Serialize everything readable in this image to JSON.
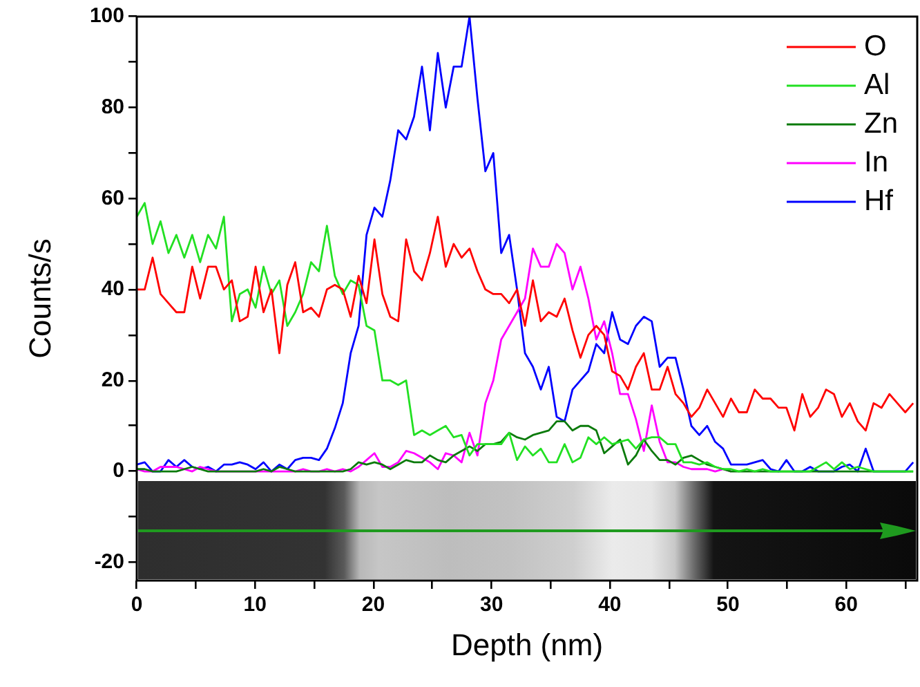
{
  "chart_data": {
    "type": "line",
    "xlabel": "Depth (nm)",
    "ylabel": "Counts/s",
    "legend": "top right",
    "xlim": [
      0,
      66
    ],
    "xticks": [
      0,
      {
        "value": 5,
        "label": null
      },
      10,
      {
        "value": 15,
        "label": null
      },
      20,
      {
        "value": 25,
        "label": null
      },
      30,
      {
        "value": 35,
        "label": null
      },
      40,
      {
        "value": 45,
        "label": null
      },
      50,
      {
        "value": 55,
        "label": null
      },
      60,
      {
        "value": 65,
        "label": null
      }
    ],
    "ylim": [
      -24,
      100
    ],
    "yticks": [
      -20,
      {
        "value": -10,
        "label": null
      },
      0,
      {
        "value": 10,
        "label": null
      },
      20,
      {
        "value": 30,
        "label": null
      },
      40,
      {
        "value": 50,
        "label": null
      },
      60,
      {
        "value": 70,
        "label": null
      },
      80,
      {
        "value": 90,
        "label": null
      },
      100
    ],
    "x": [
      0,
      0.67,
      1.34,
      2.01,
      2.68,
      3.35,
      4.02,
      4.69,
      5.36,
      6.03,
      6.7,
      7.37,
      8.04,
      8.71,
      9.38,
      10.05,
      10.72,
      11.39,
      12.06,
      12.73,
      13.4,
      14.07,
      14.74,
      15.41,
      16.08,
      16.75,
      17.42,
      18.09,
      18.76,
      19.43,
      20.1,
      20.77,
      21.44,
      22.11,
      22.78,
      23.45,
      24.12,
      24.79,
      25.46,
      26.13,
      26.8,
      27.47,
      28.14,
      28.81,
      29.48,
      30.15,
      30.82,
      31.49,
      32.16,
      32.83,
      33.5,
      34.17,
      34.84,
      35.51,
      36.18,
      36.85,
      37.52,
      38.19,
      38.86,
      39.53,
      40.2,
      40.87,
      41.54,
      42.21,
      42.88,
      43.55,
      44.22,
      44.89,
      45.56,
      46.23,
      46.9,
      47.57,
      48.24,
      48.91,
      49.58,
      50.25,
      50.92,
      51.59,
      52.26,
      52.93,
      53.6,
      54.27,
      54.94,
      55.61,
      56.28,
      56.95,
      57.62,
      58.29,
      58.96,
      59.63,
      60.3,
      60.97,
      61.64,
      62.31,
      62.98,
      63.65,
      64.32,
      64.99,
      65.66
    ],
    "series": [
      {
        "name": "O",
        "color": "#ff0000",
        "values": [
          40,
          40,
          47,
          39,
          37,
          35,
          35,
          45,
          38,
          45,
          45,
          40,
          42,
          33,
          34,
          45,
          35,
          40,
          26,
          41,
          46,
          35,
          36,
          34,
          40,
          41,
          40,
          34,
          43,
          37,
          51,
          39,
          34,
          33,
          51,
          44,
          42,
          48,
          56,
          45,
          50,
          47,
          49,
          44,
          40,
          39,
          39,
          37,
          40,
          32,
          42,
          33,
          35,
          34,
          38,
          31,
          25,
          30,
          32,
          30,
          22,
          21,
          18,
          23,
          26,
          18,
          18,
          23,
          17,
          15,
          12,
          14,
          18,
          15,
          12,
          16,
          13,
          13,
          18,
          16,
          16,
          14,
          14,
          9,
          17,
          12,
          14,
          18,
          17,
          12,
          15,
          11,
          9,
          15,
          14,
          17,
          15,
          13,
          15
        ]
      },
      {
        "name": "Al",
        "color": "#22e022",
        "values": [
          56,
          59,
          50,
          55,
          48,
          52,
          47,
          52,
          46,
          52,
          49,
          56,
          33,
          39,
          40,
          36,
          45,
          39,
          42,
          32,
          35,
          39,
          46,
          44,
          54,
          43,
          39,
          42,
          41,
          32,
          31,
          20,
          20,
          19,
          20,
          8,
          9,
          8,
          9,
          10,
          7.5,
          8,
          3.5,
          6,
          6,
          6,
          6,
          8.5,
          2.5,
          5.5,
          3.5,
          5,
          2,
          2,
          6,
          2,
          3,
          7.5,
          6,
          7.5,
          6,
          6.5,
          7,
          5,
          7,
          7.5,
          7.5,
          6,
          6,
          2,
          2,
          1.5,
          2,
          1,
          0.5,
          0.5,
          0,
          0.5,
          0,
          0.5,
          0,
          0,
          0,
          0,
          0,
          0,
          1,
          2,
          0.5,
          2,
          0.5,
          1,
          0.5,
          0,
          0,
          0,
          0,
          0,
          0
        ]
      },
      {
        "name": "Zn",
        "color": "#0b7a0b",
        "values": [
          0.5,
          0.5,
          0,
          0,
          0,
          0,
          0.5,
          1,
          0.5,
          0,
          0,
          0,
          0,
          0,
          0,
          0,
          0.5,
          0,
          1,
          0.5,
          0,
          0,
          0,
          0,
          0,
          0,
          0,
          0.5,
          2,
          1.5,
          2,
          1.5,
          0.5,
          1.5,
          2.5,
          2,
          2,
          3.5,
          2.5,
          2,
          3.5,
          4.5,
          5.5,
          4.5,
          6,
          6,
          6.5,
          8.5,
          7.5,
          7,
          8,
          8.5,
          9,
          11,
          11,
          9,
          10,
          10,
          9,
          4,
          5.5,
          7,
          1.5,
          3.5,
          7,
          4.5,
          2.5,
          2.5,
          1.5,
          3,
          3.5,
          2.5,
          1.5,
          1,
          0.5,
          0,
          0,
          0,
          0,
          0,
          0,
          0,
          0,
          0,
          0,
          0,
          0,
          0,
          0,
          0,
          0,
          0,
          0,
          0,
          0,
          0,
          0,
          0,
          0
        ]
      },
      {
        "name": "In",
        "color": "#ff00ff",
        "values": [
          0.5,
          0,
          0,
          1,
          1,
          1,
          0.5,
          0,
          1,
          0.5,
          0,
          0,
          0,
          0,
          0,
          0,
          0,
          0,
          0,
          0,
          0,
          0.5,
          0,
          0,
          0.5,
          0,
          0.5,
          0,
          1,
          2.5,
          4,
          1,
          1,
          2,
          4.5,
          4,
          3,
          2,
          0.5,
          4,
          3.5,
          2,
          8.5,
          3.5,
          15,
          20,
          29,
          32,
          35,
          38,
          49,
          45,
          45,
          50,
          48,
          40,
          45,
          38,
          29,
          33,
          26,
          17,
          17,
          11.5,
          4.5,
          14.5,
          6.5,
          2,
          2,
          1,
          0.5,
          0.5,
          0.5,
          0,
          0.5,
          0,
          null,
          null,
          null,
          null,
          null,
          null,
          null,
          null,
          null,
          null,
          null,
          null,
          null,
          null,
          null,
          null,
          null,
          null,
          null,
          null,
          null,
          null,
          null
        ]
      },
      {
        "name": "Hf",
        "color": "#0000ff",
        "values": [
          1.5,
          2,
          0,
          0,
          2.5,
          1,
          2.5,
          1,
          0.5,
          1,
          0,
          1.5,
          1.5,
          2,
          1.5,
          0.5,
          2,
          0,
          1.5,
          0.5,
          2.5,
          3,
          3,
          2.5,
          5,
          9.5,
          15,
          26,
          32,
          52,
          58,
          56,
          64,
          75,
          73,
          78,
          89,
          75,
          92,
          80,
          89,
          89,
          100,
          82,
          66,
          70,
          48,
          52,
          40,
          26,
          23,
          18,
          23,
          12,
          11,
          18,
          20,
          22,
          28,
          26,
          35,
          29,
          28,
          32,
          34,
          33,
          23,
          25,
          25,
          18,
          10,
          8,
          10,
          6.5,
          5,
          1.5,
          1.5,
          1.5,
          2,
          2.5,
          0.5,
          0,
          2.5,
          0,
          0,
          1,
          0,
          0,
          0,
          1,
          1.5,
          0,
          5,
          0,
          0,
          0,
          0,
          0,
          2
        ]
      }
    ]
  }
}
